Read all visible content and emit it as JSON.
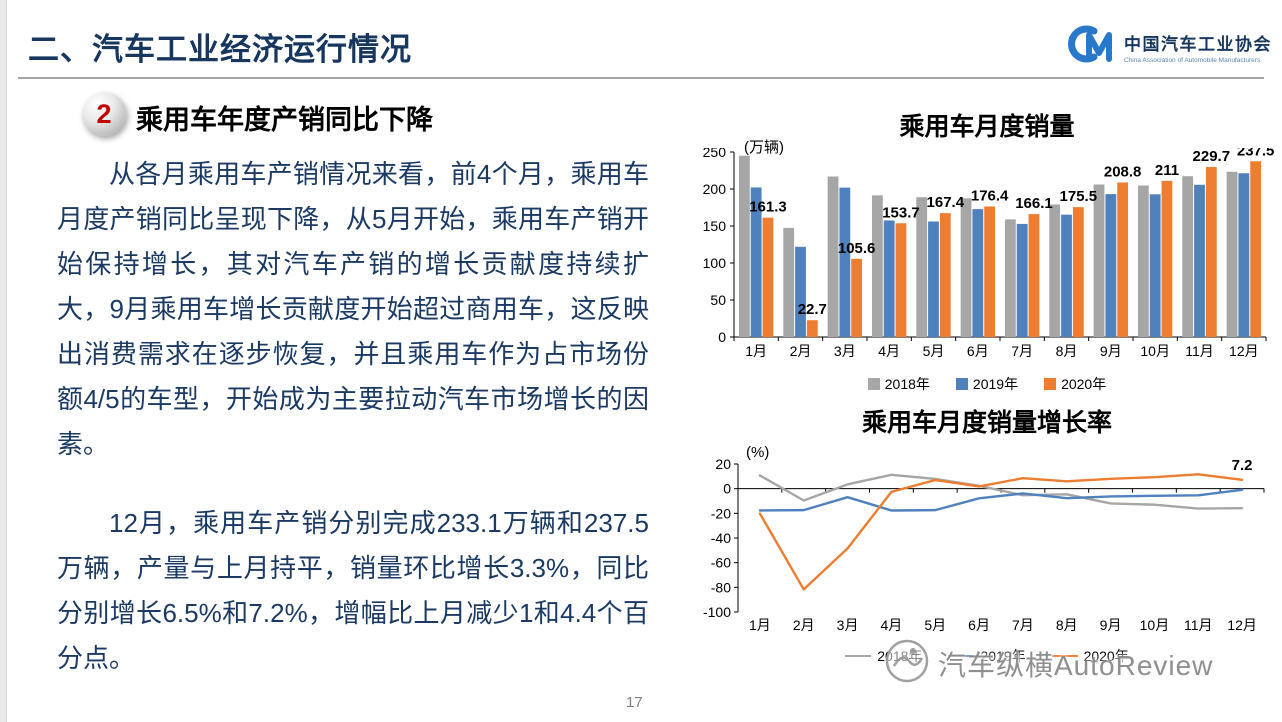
{
  "slide": {
    "title": "二、汽车工业经济运行情况",
    "page_number": "17"
  },
  "logo": {
    "org_name_cn": "中国汽车工业协会",
    "org_name_en": "China Association of Automobile Manufacturers"
  },
  "section": {
    "number": "2",
    "heading": "乘用车年度产销同比下降",
    "paragraph1": "从各月乘用车产销情况来看，前4个月，乘用车月度产销同比呈现下降，从5月开始，乘用车产销开始保持增长，其对汽车产销的增长贡献度持续扩大，9月乘用车增长贡献度开始超过商用车，这反映出消费需求在逐步恢复，并且乘用车作为占市场份额4/5的车型，开始成为主要拉动汽车市场增长的因素。",
    "paragraph2": "12月，乘用车产销分别完成233.1万辆和237.5万辆，产量与上月持平，销量环比增长3.3%，同比分别增长6.5%和7.2%，增幅比上月减少1和4.4个百分点。"
  },
  "watermark": {
    "text": "汽车纵横AutoReview"
  },
  "chart_data": [
    {
      "type": "bar",
      "title": "乘用车月度销量",
      "unit_label": "(万辆)",
      "categories": [
        "1月",
        "2月",
        "3月",
        "4月",
        "5月",
        "6月",
        "7月",
        "8月",
        "9月",
        "10月",
        "11月",
        "12月"
      ],
      "series": [
        {
          "name": "2018年",
          "color": "#A6A6A6",
          "values": [
            245.0,
            147.5,
            216.9,
            191.4,
            188.9,
            187.4,
            159.0,
            179.0,
            206.1,
            204.7,
            217.3,
            223.3
          ]
        },
        {
          "name": "2019年",
          "color": "#4F81BD",
          "values": [
            202.1,
            121.9,
            201.9,
            157.5,
            156.1,
            172.8,
            152.8,
            165.3,
            193.1,
            192.8,
            205.7,
            221.3
          ]
        },
        {
          "name": "2020年",
          "color": "#ED7D31",
          "values": [
            161.3,
            22.7,
            105.6,
            153.7,
            167.4,
            176.4,
            166.1,
            175.5,
            208.8,
            211.0,
            229.7,
            237.5
          ],
          "data_labels": [
            "161.3",
            "22.7",
            "105.6",
            "153.7",
            "167.4",
            "176.4",
            "166.1",
            "175.5",
            "208.8",
            "211",
            "229.7",
            "237.5"
          ]
        }
      ],
      "ylim": [
        0,
        250
      ],
      "ytick_step": 50,
      "grid": false,
      "legend_position": "bottom"
    },
    {
      "type": "line",
      "title": "乘用车月度销量增长率",
      "unit_label": "(%)",
      "categories": [
        "1月",
        "2月",
        "3月",
        "4月",
        "5月",
        "6月",
        "7月",
        "8月",
        "9月",
        "10月",
        "11月",
        "12月"
      ],
      "series": [
        {
          "name": "2018年",
          "color": "#A6A6A6",
          "values": [
            10.7,
            -9.6,
            3.5,
            11.2,
            7.9,
            2.3,
            -5.3,
            -4.6,
            -12.0,
            -13.0,
            -16.1,
            -15.8
          ]
        },
        {
          "name": "2019年",
          "color": "#4F81BD",
          "values": [
            -17.7,
            -17.4,
            -6.9,
            -17.7,
            -17.4,
            -7.8,
            -3.9,
            -7.7,
            -6.3,
            -5.8,
            -5.4,
            -0.9
          ]
        },
        {
          "name": "2020年",
          "color": "#ED7D31",
          "values": [
            -20.2,
            -81.7,
            -48.4,
            -2.6,
            7.0,
            1.8,
            8.5,
            6.0,
            8.0,
            9.3,
            11.6,
            7.2
          ],
          "last_point_label": "7.2"
        }
      ],
      "ylim": [
        -100,
        20
      ],
      "ytick_step": 20,
      "grid": false,
      "legend_position": "bottom"
    }
  ]
}
